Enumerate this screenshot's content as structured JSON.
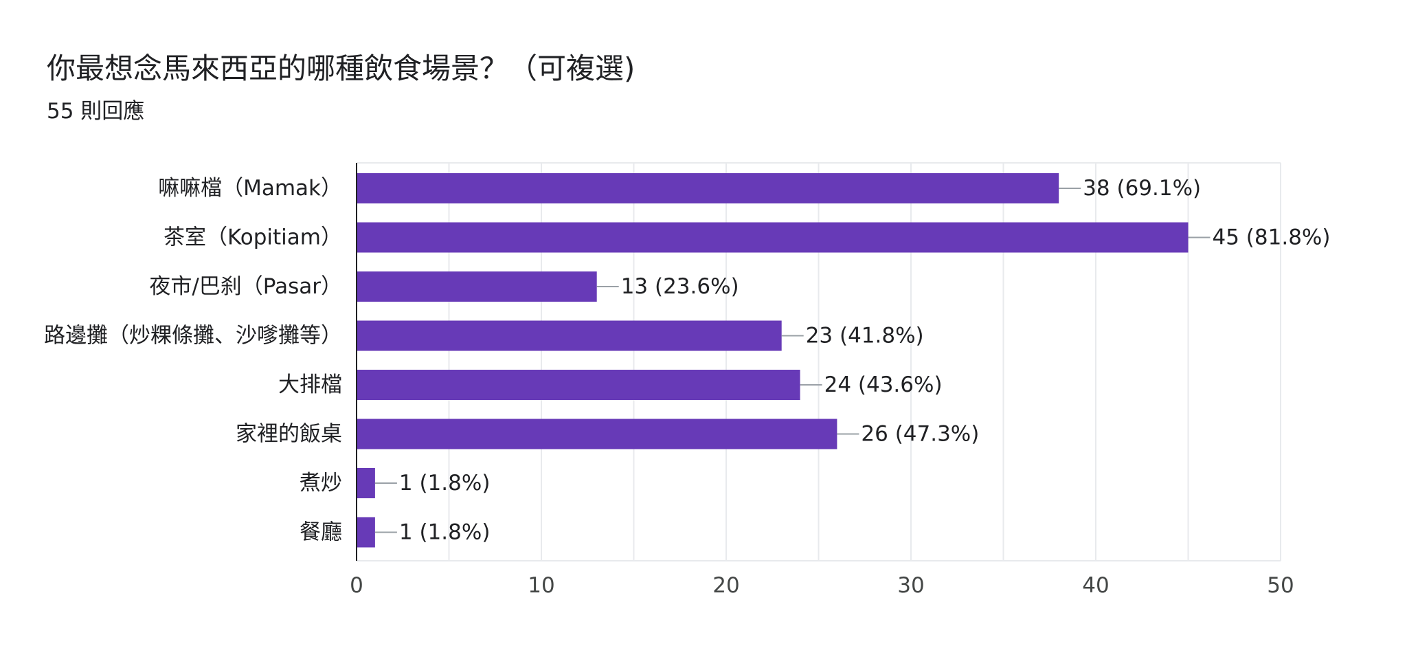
{
  "title": "你最想念馬來西亞的哪種飲食場景？（可複選)",
  "subtitle": "55 則回應",
  "colors": {
    "bar": "#673ab7",
    "grid": "#e8eaed",
    "axis": "#202124",
    "leader": "#9aa0a6"
  },
  "chart_data": {
    "type": "bar",
    "orientation": "horizontal",
    "categories": [
      "嘛嘛檔（Mamak）",
      "茶室（Kopitiam）",
      "夜市/巴刹（Pasar）",
      "路邊攤（炒粿條攤、沙嗲攤等）",
      "大排檔",
      "家裡的飯桌",
      "煮炒",
      "餐廳"
    ],
    "values": [
      38,
      45,
      13,
      23,
      24,
      26,
      1,
      1
    ],
    "value_labels": [
      "38 (69.1%)",
      "45 (81.8%)",
      "13 (23.6%)",
      "23 (41.8%)",
      "24 (43.6%)",
      "26 (47.3%)",
      "1 (1.8%)",
      "1 (1.8%)"
    ],
    "xlim": [
      0,
      50
    ],
    "xticks": [
      0,
      10,
      20,
      30,
      40,
      50
    ],
    "xtick_labels": [
      "0",
      "10",
      "20",
      "30",
      "40",
      "50"
    ],
    "grid": true
  }
}
